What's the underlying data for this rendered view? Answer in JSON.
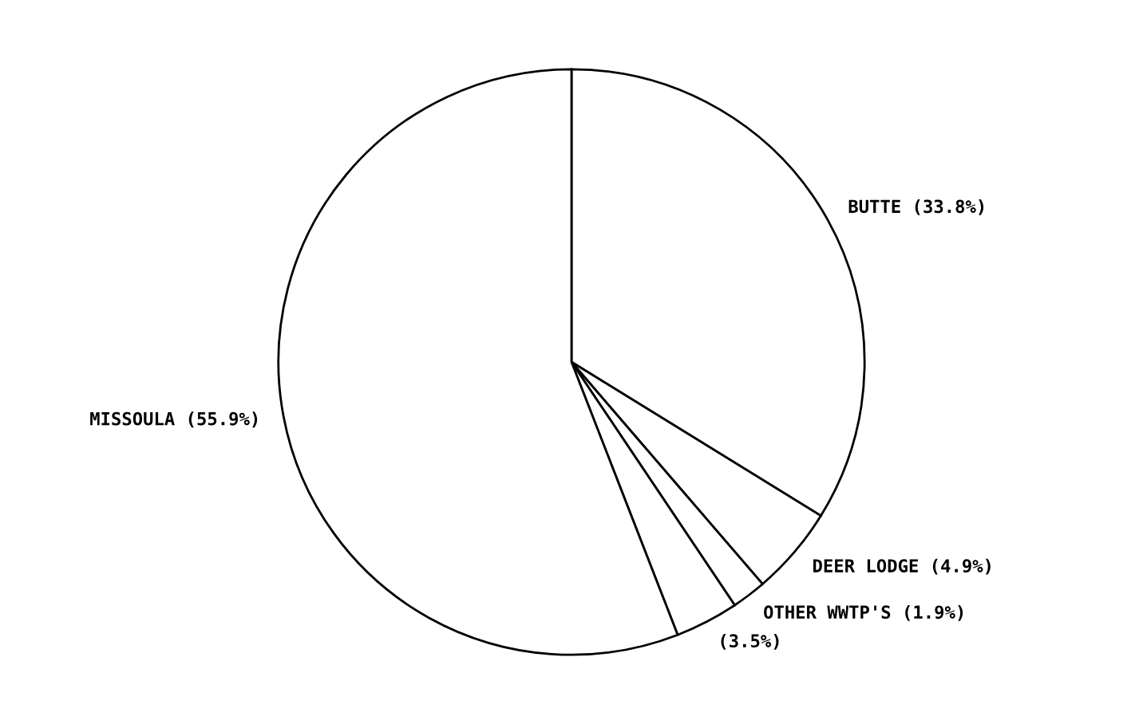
{
  "chart_data": {
    "type": "pie",
    "categories": [
      "BUTTE",
      "DEER LODGE",
      "OTHER WWTP'S",
      null,
      "MISSOULA"
    ],
    "values": [
      33.8,
      4.9,
      1.9,
      3.5,
      55.9
    ],
    "value_labels": [
      "(33.8%)",
      "(4.9%)",
      "(1.9%)",
      "(3.5%)",
      "(55.9%)"
    ],
    "colors": [
      "#ffffff",
      "#ffffff",
      "#ffffff",
      "#ffffff",
      "#ffffff"
    ]
  }
}
